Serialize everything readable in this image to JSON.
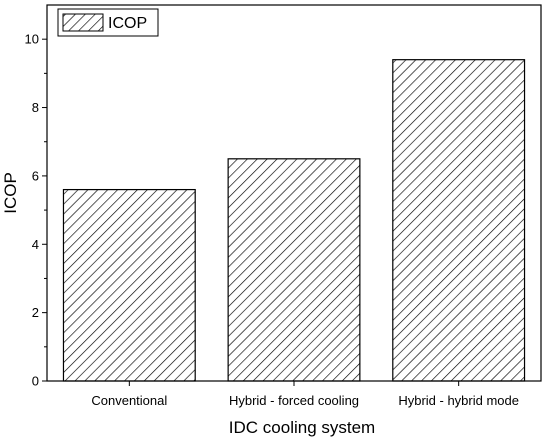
{
  "chart_data": {
    "type": "bar",
    "categories": [
      "Conventional",
      "Hybrid - forced cooling",
      "Hybrid - hybrid mode"
    ],
    "series": [
      {
        "name": "ICOP",
        "values": [
          5.6,
          6.5,
          9.4
        ]
      }
    ],
    "xlabel": "IDC cooling system",
    "ylabel": "ICOP",
    "ylim": [
      0,
      11
    ],
    "yticks": [
      0,
      2,
      4,
      6,
      8,
      10
    ],
    "ytick_labels": [
      "0",
      "2",
      "4",
      "6",
      "8",
      "10"
    ],
    "grid": false,
    "legend": {
      "placement": "top-left",
      "entries": [
        "ICOP"
      ]
    },
    "bar_fill": "diagonal-hatch",
    "colors": {
      "bar_stroke": "#000000",
      "hatch": "#000000",
      "background": "#ffffff"
    }
  }
}
